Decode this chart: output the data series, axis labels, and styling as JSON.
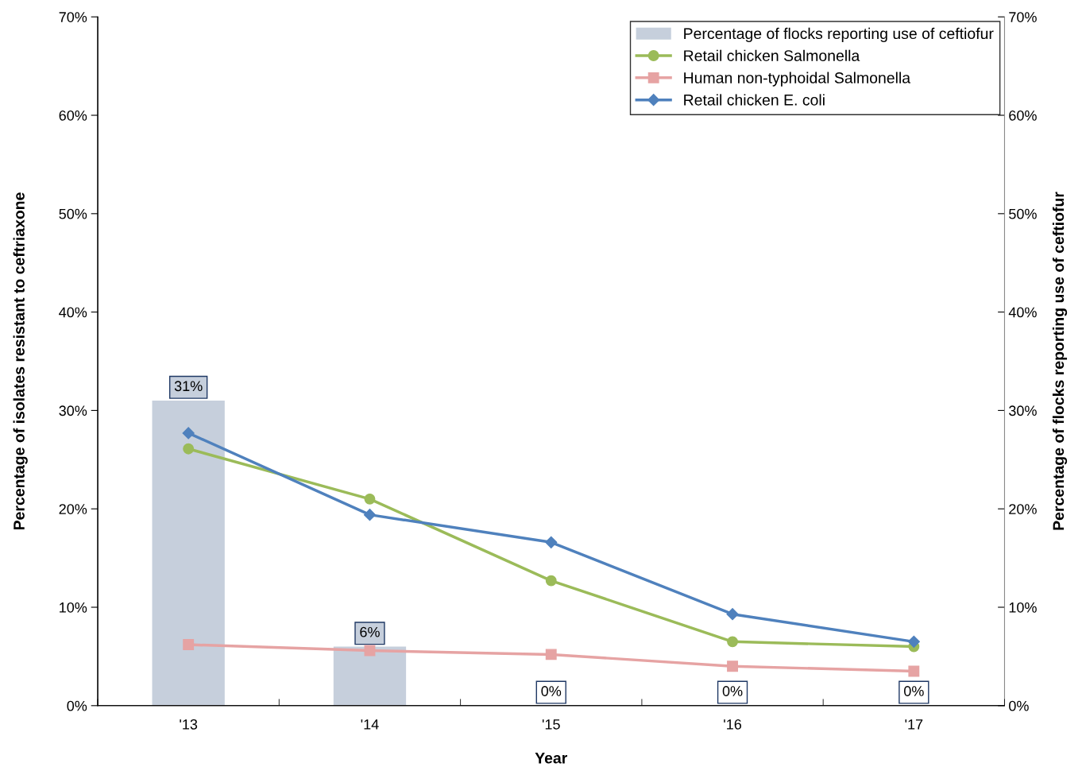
{
  "chart_data": {
    "type": "line",
    "xlabel": "Year",
    "ylabel": "Percentage of isolates resistant to ceftriaxone",
    "y2label": "Percentage of flocks reporting use of ceftiofur",
    "categories": [
      "'13",
      "'14",
      "'15",
      "'16",
      "'17"
    ],
    "series": [
      {
        "name": "Percentage of flocks reporting use of ceftiofur",
        "type": "bar",
        "axis": "y2",
        "color": "#c6cfdc",
        "values": [
          31,
          6,
          0,
          0,
          0
        ],
        "value_labels": [
          "31%",
          "6%",
          "0%",
          "0%",
          "0%"
        ]
      },
      {
        "name": "Retail chicken Salmonella",
        "color": "#9bbb59",
        "marker": "circle",
        "values": [
          26.1,
          21.0,
          12.7,
          6.5,
          6.0
        ]
      },
      {
        "name": "Human non-typhoidal Salmonella",
        "color": "#e6a3a3",
        "marker": "square",
        "values": [
          6.2,
          5.6,
          5.2,
          4.0,
          3.5
        ]
      },
      {
        "name": "Retail chicken E. coli",
        "color": "#4f81bd",
        "marker": "diamond",
        "values": [
          27.7,
          19.4,
          16.6,
          9.3,
          6.5
        ]
      }
    ],
    "ylim": [
      0,
      70
    ],
    "yticks": [
      {
        "value": 0,
        "label": "0%"
      },
      {
        "value": 10,
        "label": "10%"
      },
      {
        "value": 20,
        "label": "20%"
      },
      {
        "value": 30,
        "label": "30%"
      },
      {
        "value": 40,
        "label": "40%"
      },
      {
        "value": 50,
        "label": "50%"
      },
      {
        "value": 60,
        "label": "60%"
      },
      {
        "value": 70,
        "label": "70%"
      }
    ],
    "y2lim": [
      0,
      70
    ],
    "y2ticks": [
      {
        "value": 0,
        "label": "0%"
      },
      {
        "value": 10,
        "label": "10%"
      },
      {
        "value": 20,
        "label": "20%"
      },
      {
        "value": 30,
        "label": "30%"
      },
      {
        "value": 40,
        "label": "40%"
      },
      {
        "value": 50,
        "label": "50%"
      },
      {
        "value": 60,
        "label": "60%"
      },
      {
        "value": 70,
        "label": "70%"
      }
    ],
    "legend": "top right",
    "grid": false
  }
}
